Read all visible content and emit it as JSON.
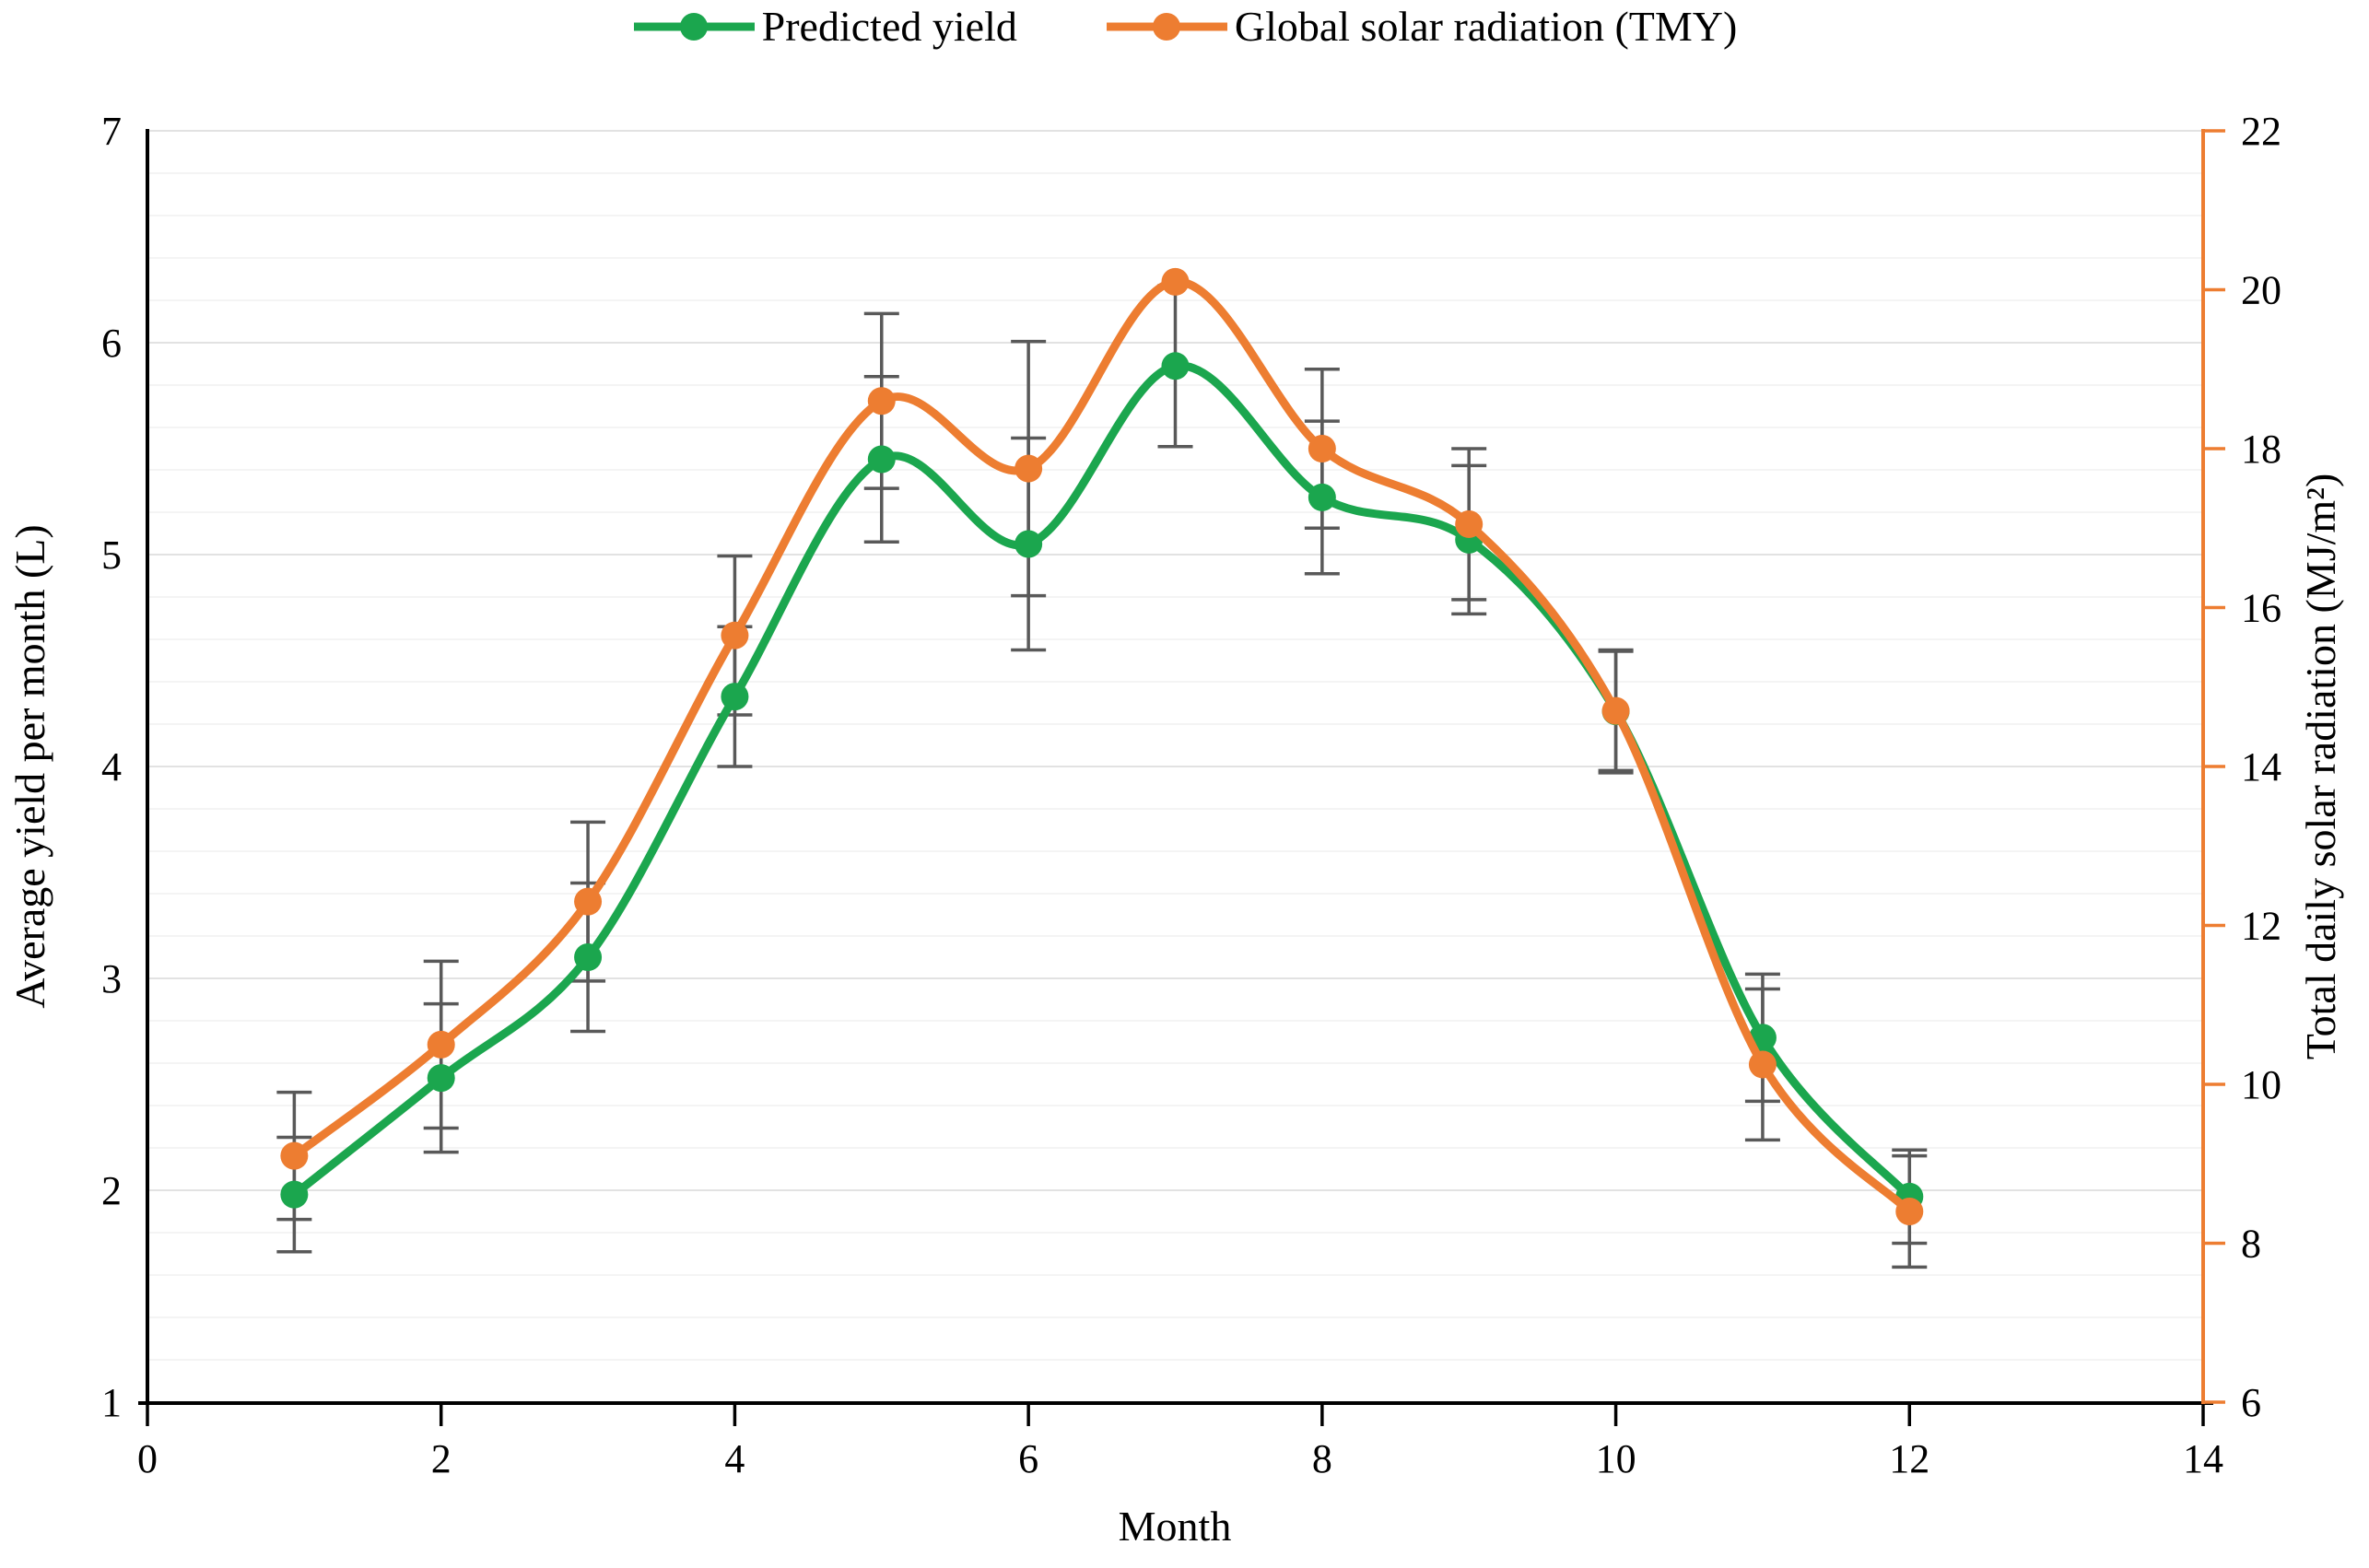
{
  "chart_data": {
    "type": "line",
    "title": "",
    "xlabel": "Month",
    "x": [
      1,
      2,
      3,
      4,
      5,
      6,
      7,
      8,
      9,
      10,
      11,
      12
    ],
    "x_axis": {
      "min": 0,
      "max": 14,
      "tick_step": 2,
      "tick_labels": [
        "0",
        "2",
        "4",
        "6",
        "8",
        "10",
        "12",
        "14"
      ]
    },
    "left_axis": {
      "label": "Average yield per month (L)",
      "min": 1,
      "max": 7,
      "tick_step": 1,
      "tick_labels": [
        "1",
        "2",
        "3",
        "4",
        "5",
        "6",
        "7"
      ]
    },
    "right_axis": {
      "label": "Total daily solar radiation (MJ/m²)",
      "min": 6,
      "max": 22,
      "tick_step": 2,
      "tick_labels": [
        "6",
        "8",
        "10",
        "12",
        "14",
        "16",
        "18",
        "20",
        "22"
      ]
    },
    "grid": "horizontal, minor every 0.2 left-units",
    "legend_position": "top-center",
    "error_bar_color": "#595959",
    "axis_color_left": "#000000",
    "axis_color_right": "#ED7D31",
    "series": [
      {
        "name": "Predicted yield",
        "axis": "left",
        "color": "#1BA64E",
        "marker": "circle",
        "values": [
          1.98,
          2.53,
          3.1,
          4.33,
          5.45,
          5.05,
          5.89,
          5.27,
          5.07,
          4.26,
          2.72,
          1.97
        ],
        "errors": [
          0.27,
          0.35,
          0.35,
          0.33,
          0.39,
          0.5,
          0.38,
          0.36,
          0.35,
          0.29,
          0.3,
          0.22
        ]
      },
      {
        "name": "Global solar radiation (TMY)",
        "axis": "right",
        "color": "#ED7D31",
        "marker": "circle",
        "values": [
          9.1,
          10.5,
          12.3,
          15.65,
          18.6,
          17.75,
          20.1,
          18.0,
          17.05,
          14.7,
          10.25,
          8.4
        ],
        "errors": [
          0.8,
          1.05,
          1.0,
          1.0,
          1.1,
          1.6,
          0,
          1.0,
          0.95,
          0.75,
          0.95,
          0.7
        ]
      }
    ]
  }
}
